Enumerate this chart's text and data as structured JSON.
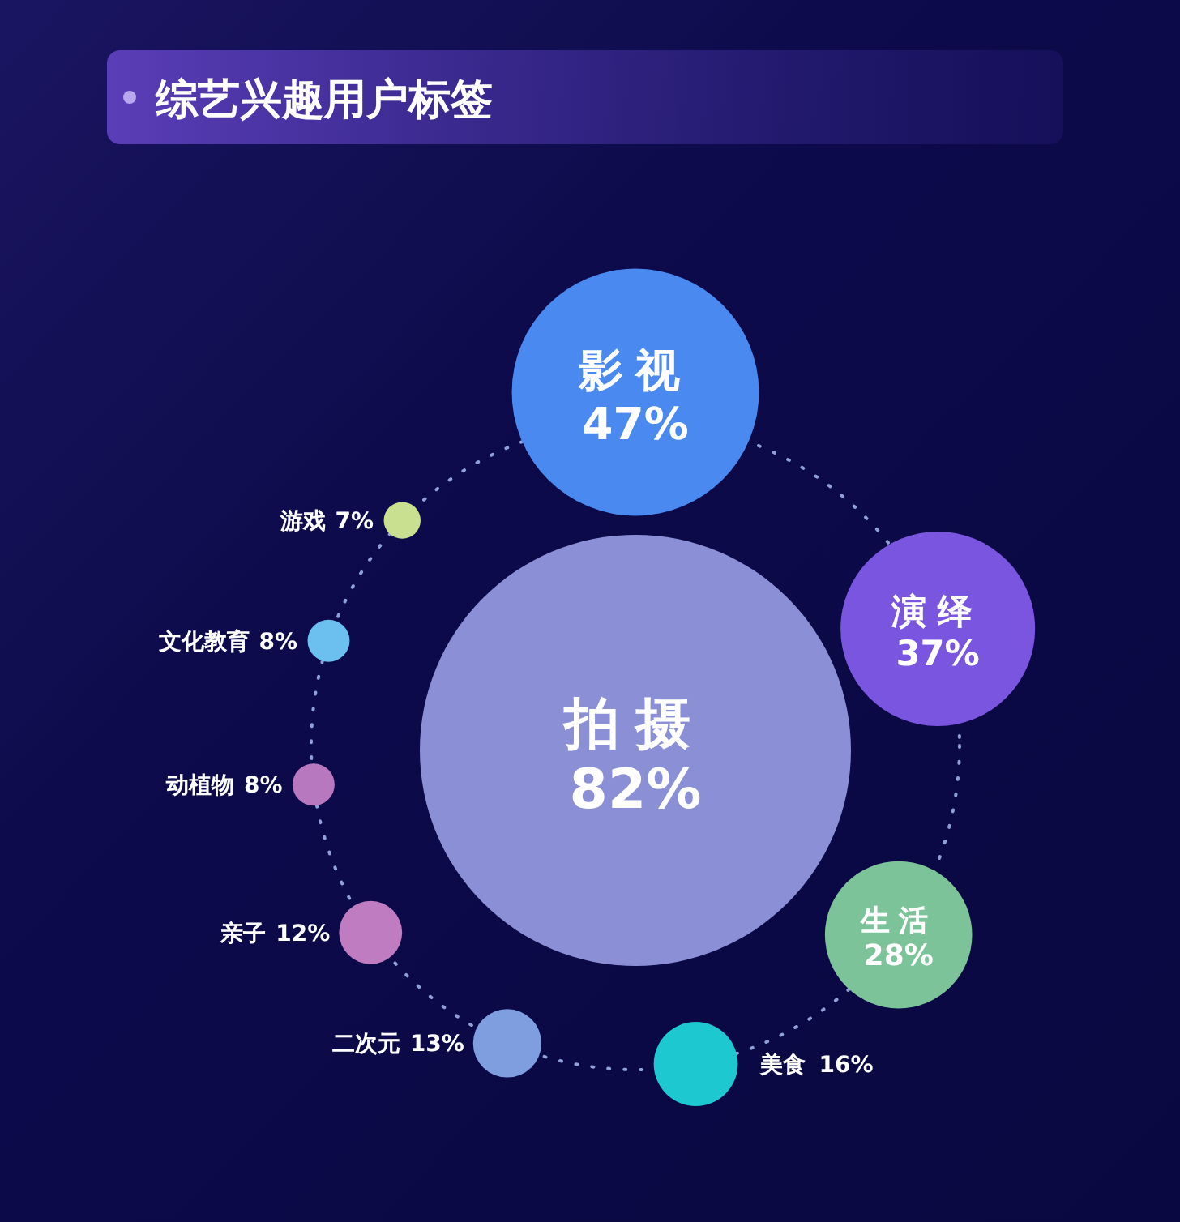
{
  "chart_data": {
    "type": "other",
    "title": "综艺兴趣用户标签",
    "categories": [
      "拍摄",
      "影视",
      "演绎",
      "生活",
      "美食",
      "二次元",
      "亲子",
      "动植物",
      "文化教育",
      "游戏"
    ],
    "values": [
      82,
      47,
      37,
      28,
      16,
      13,
      12,
      8,
      8,
      7
    ],
    "value_labels": [
      "82%",
      "47%",
      "37%",
      "28%",
      "16%",
      "13%",
      "12%",
      "8%",
      "8%",
      "7%"
    ],
    "colors": [
      "#8a8fd6",
      "#4a8af0",
      "#7a55e0",
      "#7cc39a",
      "#1ec8d0",
      "#7f9ee0",
      "#c07cc0",
      "#b878c0",
      "#6cc0f0",
      "#c8e090"
    ]
  }
}
